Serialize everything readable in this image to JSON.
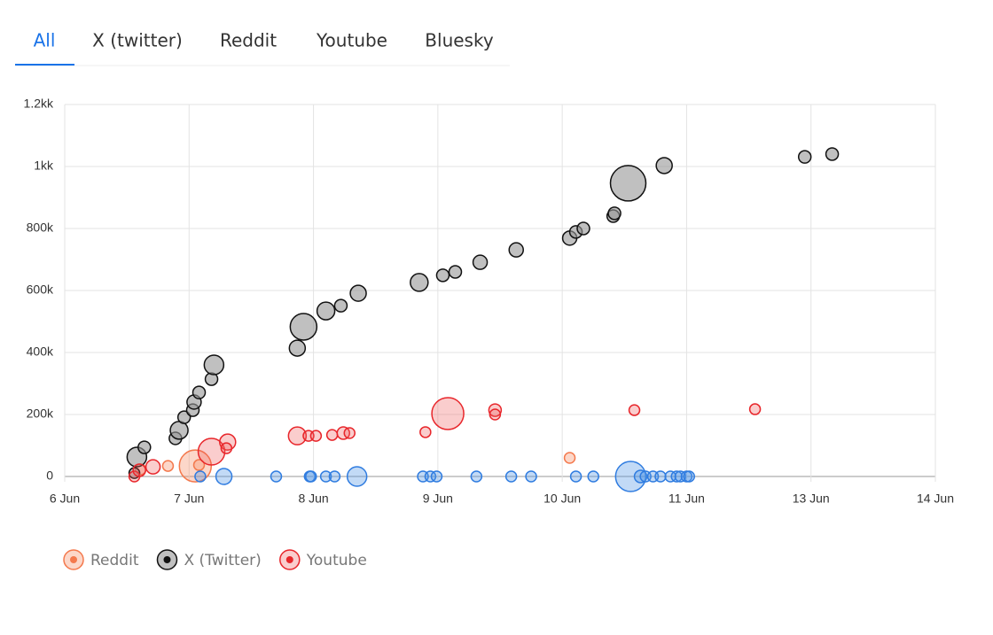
{
  "tabs": {
    "items": [
      "All",
      "X (twitter)",
      "Reddit",
      "Youtube",
      "Bluesky"
    ],
    "active": 0
  },
  "chart_data": {
    "type": "bubble",
    "xlim": [
      0,
      7
    ],
    "xticks": [
      {
        "value": 0,
        "label": "6 Jun"
      },
      {
        "value": 1,
        "label": "7 Jun"
      },
      {
        "value": 2,
        "label": "8 Jun"
      },
      {
        "value": 3,
        "label": "9 Jun"
      },
      {
        "value": 4,
        "label": "10 Jun"
      },
      {
        "value": 5,
        "label": "11 Jun"
      },
      {
        "value": 6,
        "label": "13 Jun"
      },
      {
        "value": 7,
        "label": "14 Jun"
      }
    ],
    "ylim": [
      0,
      1200000
    ],
    "yticks": [
      0,
      {
        "value": 200000,
        "label": "200k"
      },
      {
        "value": 400000,
        "label": "400k"
      },
      {
        "value": 600000,
        "label": "600k"
      },
      {
        "value": 800000,
        "label": "800k"
      },
      {
        "value": 1000000,
        "label": "1kk"
      },
      {
        "value": 1200000,
        "label": "1.2kk"
      }
    ],
    "grid": true,
    "legend": "bottom-left",
    "series": [
      {
        "name": "Reddit",
        "color": "#f4794d",
        "fill": "rgba(247,140,100,0.35)",
        "x": [
          1.05,
          0.83,
          1.08,
          4.06,
          0.61
        ],
        "y": [
          34000,
          34000,
          37000,
          60000,
          23000
        ],
        "sizes": [
          18,
          6,
          6,
          6,
          6
        ]
      },
      {
        "name": "X (Twitter)",
        "color": "#111111",
        "fill": "rgba(150,150,150,0.6)",
        "x": [
          0.58,
          0.64,
          0.56,
          0.89,
          0.92,
          0.96,
          1.03,
          1.04,
          1.08,
          1.18,
          1.2,
          1.87,
          1.92,
          2.1,
          2.22,
          2.36,
          2.85,
          3.04,
          3.14,
          3.34,
          3.63,
          4.06,
          4.11,
          4.17,
          4.41,
          4.42,
          4.53,
          4.82,
          5.95,
          6.17
        ],
        "y": [
          63000,
          94000,
          11000,
          123000,
          149000,
          191000,
          214000,
          240000,
          271000,
          314000,
          360000,
          414000,
          483000,
          534000,
          551000,
          591000,
          626000,
          649000,
          660000,
          691000,
          731000,
          769000,
          789000,
          800000,
          840000,
          849000,
          946000,
          1003000,
          1031000,
          1040000
        ],
        "sizes": [
          11,
          7,
          6,
          7,
          10,
          7,
          7,
          8,
          7,
          7,
          11,
          9,
          15,
          10,
          7,
          9,
          10,
          7,
          7,
          8,
          8,
          8,
          7,
          7,
          7,
          7,
          20,
          9,
          7,
          7
        ]
      },
      {
        "name": "Youtube",
        "color": "#e8262b",
        "fill": "rgba(240,90,90,0.3)",
        "x": [
          0.56,
          0.6,
          0.71,
          1.18,
          1.31,
          1.3,
          1.87,
          1.96,
          2.02,
          2.15,
          2.24,
          2.29,
          2.9,
          3.08,
          3.46,
          3.46,
          4.58,
          5.55
        ],
        "y": [
          0,
          20000,
          31000,
          80000,
          111000,
          91000,
          131000,
          131000,
          131000,
          134000,
          140000,
          140000,
          143000,
          203000,
          214000,
          200000,
          214000,
          217000
        ],
        "sizes": [
          6,
          7,
          8,
          15,
          9,
          6,
          10,
          6,
          6,
          6,
          7,
          6,
          6,
          18,
          7,
          6,
          6,
          6
        ]
      },
      {
        "color": "#2f7ce0",
        "fill": "rgba(80,150,230,0.35)",
        "x": [
          1.09,
          1.28,
          1.7,
          1.97,
          1.98,
          2.1,
          2.17,
          2.35,
          2.88,
          2.94,
          2.99,
          3.31,
          3.59,
          3.75,
          4.11,
          4.25,
          4.55,
          4.63,
          4.67,
          4.73,
          4.79,
          4.87,
          4.92,
          4.95,
          5.0,
          5.02
        ],
        "y": [
          0,
          0,
          0,
          0,
          0,
          0,
          0,
          0,
          0,
          0,
          0,
          0,
          0,
          0,
          0,
          0,
          0,
          0,
          0,
          0,
          0,
          0,
          0,
          0,
          0,
          0
        ],
        "sizes": [
          6,
          9,
          6,
          6,
          6,
          6,
          6,
          11,
          6,
          6,
          6,
          6,
          6,
          6,
          6,
          6,
          17,
          7,
          6,
          6,
          6,
          6,
          6,
          6,
          6,
          6
        ]
      }
    ]
  }
}
